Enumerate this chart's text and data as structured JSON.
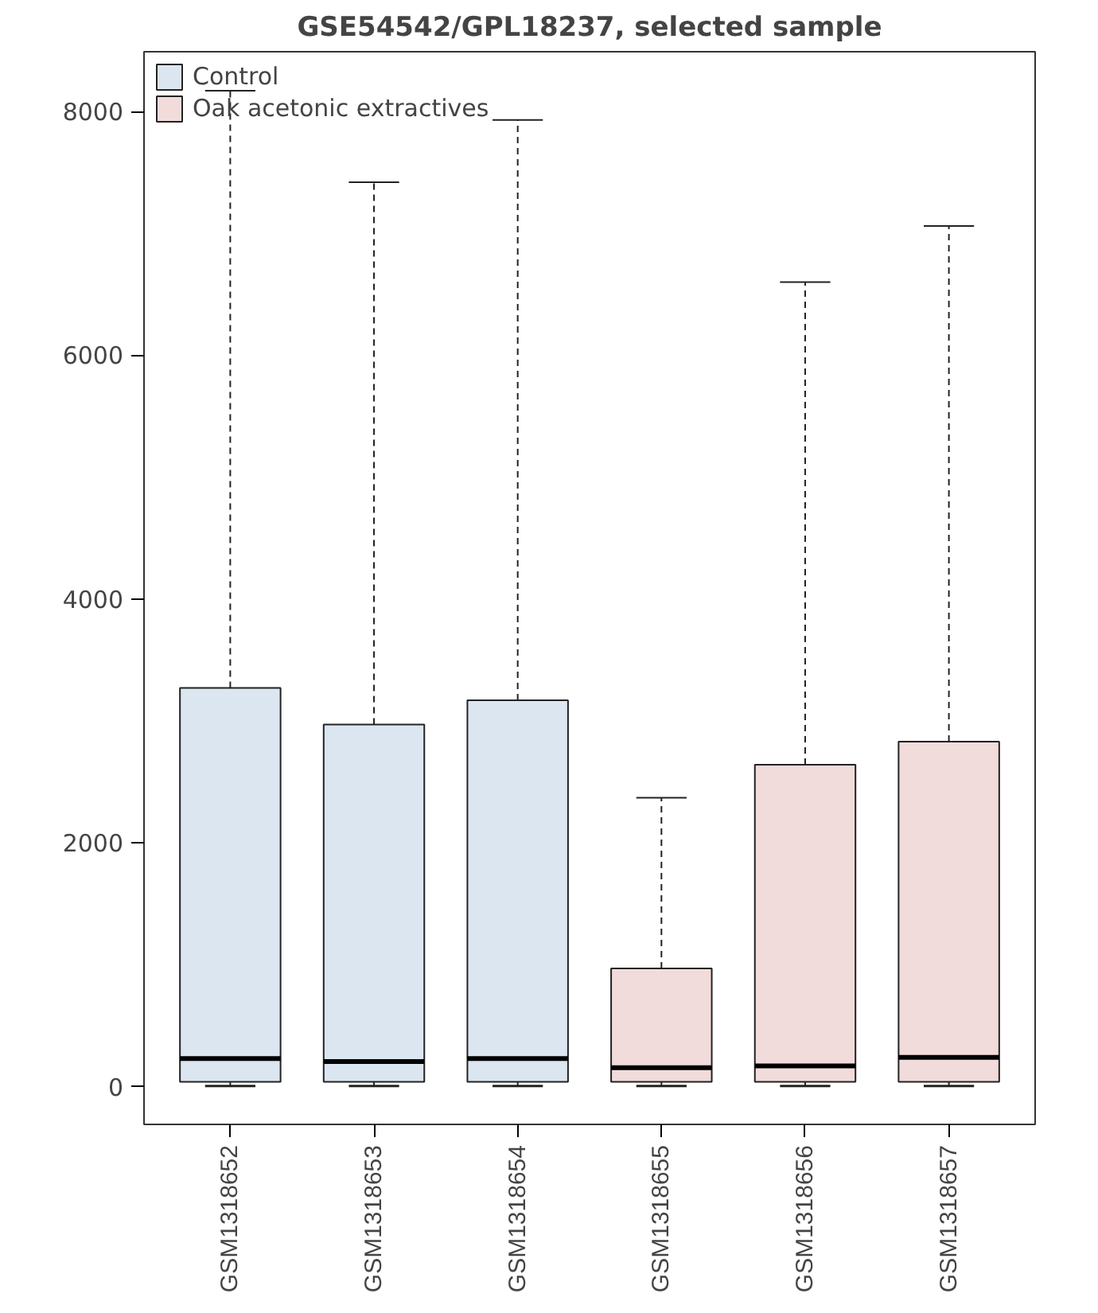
{
  "chart_data": {
    "type": "box",
    "title": "GSE54542/GPL18237, selected sample",
    "categories": [
      "GSM1318652",
      "GSM1318653",
      "GSM1318654",
      "GSM1318655",
      "GSM1318656",
      "GSM1318657"
    ],
    "series": [
      {
        "name": "Control",
        "color": "#dce6f1",
        "boxes": [
          {
            "low": 5,
            "q1": 40,
            "median": 230,
            "q3": 3270,
            "high": 8170
          },
          {
            "low": 5,
            "q1": 40,
            "median": 205,
            "q3": 2970,
            "high": 7420
          },
          {
            "low": 5,
            "q1": 40,
            "median": 230,
            "q3": 3170,
            "high": 7930
          },
          null,
          null,
          null
        ]
      },
      {
        "name": "Oak acetonic extractives",
        "color": "#f2dcdb",
        "boxes": [
          null,
          null,
          null,
          {
            "low": 5,
            "q1": 40,
            "median": 155,
            "q3": 970,
            "high": 2370
          },
          {
            "low": 5,
            "q1": 40,
            "median": 170,
            "q3": 2640,
            "high": 6600
          },
          {
            "low": 5,
            "q1": 40,
            "median": 240,
            "q3": 2830,
            "high": 7060
          }
        ]
      }
    ],
    "ylim": [
      -310,
      8490
    ],
    "yticks": [
      0,
      2000,
      4000,
      6000,
      8000
    ],
    "grid": false,
    "legend": "top left"
  }
}
